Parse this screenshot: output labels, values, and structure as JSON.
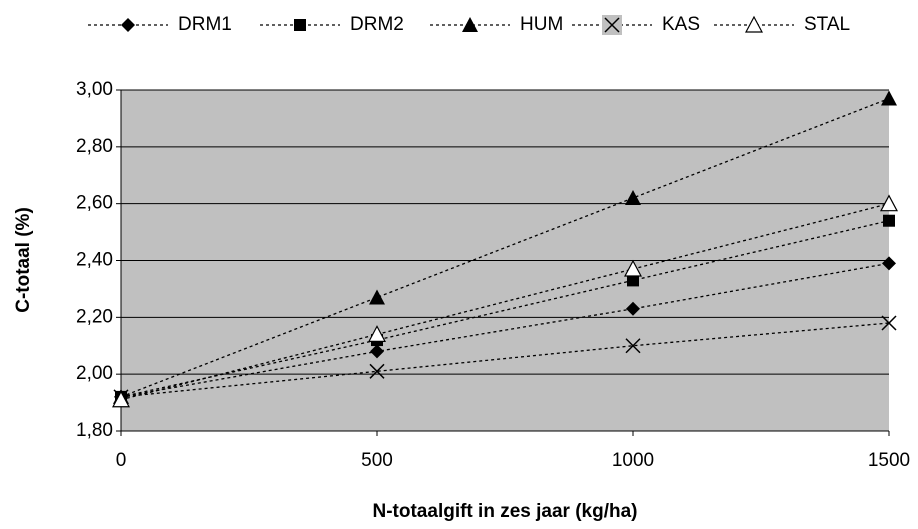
{
  "chart_data": {
    "type": "line",
    "xlabel": "N-totaalgift in zes jaar (kg/ha)",
    "ylabel": "C-totaal (%)",
    "x": [
      0,
      500,
      1000,
      1500
    ],
    "series": [
      {
        "name": "DRM1",
        "color": "#000000",
        "marker": "diamond",
        "values": [
          1.92,
          2.08,
          2.23,
          2.39
        ]
      },
      {
        "name": "DRM2",
        "color": "#000000",
        "marker": "square",
        "values": [
          1.92,
          2.12,
          2.33,
          2.54
        ]
      },
      {
        "name": "HUM",
        "color": "#000000",
        "marker": "triangle",
        "values": [
          1.92,
          2.27,
          2.62,
          2.97
        ]
      },
      {
        "name": "KAS",
        "color": "#000000",
        "marker": "x",
        "values": [
          1.92,
          2.01,
          2.1,
          2.18
        ]
      },
      {
        "name": "STAL",
        "color": "#000000",
        "marker": "open-triangle",
        "values": [
          1.91,
          2.14,
          2.37,
          2.6
        ]
      }
    ],
    "xlim": [
      0,
      1500
    ],
    "xticks": [
      0,
      500,
      1000,
      1500
    ],
    "ylim": [
      1.8,
      3.0
    ],
    "yticks": [
      {
        "value": 1.8,
        "label": "1,80"
      },
      {
        "value": 2.0,
        "label": "2,00"
      },
      {
        "value": 2.2,
        "label": "2,20"
      },
      {
        "value": 2.4,
        "label": "2,40"
      },
      {
        "value": 2.6,
        "label": "2,60"
      },
      {
        "value": 2.8,
        "label": "2,80"
      },
      {
        "value": 3.0,
        "label": "3,00"
      }
    ],
    "grid": true,
    "legend": "top",
    "plot_background": "#c0c0c0"
  }
}
